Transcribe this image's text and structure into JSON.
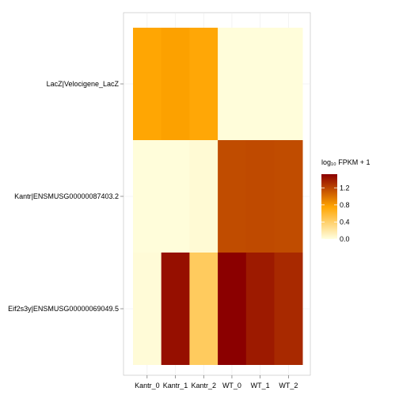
{
  "chart_data": {
    "type": "heatmap",
    "columns": [
      "Kantr_0",
      "Kantr_1",
      "Kantr_2",
      "WT_0",
      "WT_1",
      "WT_2"
    ],
    "rows": [
      "LacZ|Velocigene_LacZ",
      "Kantr|ENSMUSG00000087403.2",
      "Eif2s3y|ENSMUSG00000069049.5"
    ],
    "values": [
      [
        0.75,
        0.78,
        0.74,
        0.02,
        0.02,
        0.02
      ],
      [
        0.02,
        0.02,
        0.04,
        1.17,
        1.18,
        1.17
      ],
      [
        0.03,
        1.45,
        0.44,
        1.52,
        1.4,
        1.33
      ]
    ],
    "legend": {
      "title": "log₁₀ FPKM + 1",
      "ticks": [
        0.0,
        0.4,
        0.8,
        1.2
      ],
      "tick_labels": [
        "0.0",
        "0.4",
        "0.8",
        "1.2"
      ],
      "range": [
        0.0,
        1.52
      ],
      "colors": [
        "#ffffe0",
        "#ffa500",
        "#8b0000"
      ]
    },
    "grid": true,
    "legend_position": "right"
  }
}
